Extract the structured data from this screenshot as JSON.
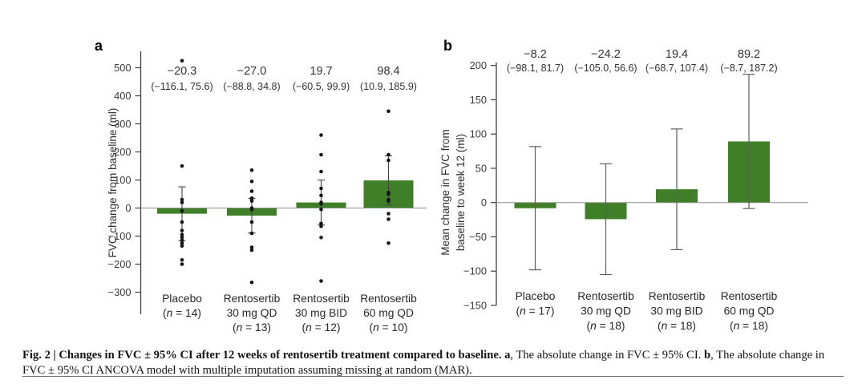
{
  "figure": {
    "caption": {
      "segments": [
        {
          "text": "Fig. 2 | Changes in FVC ± 95% CI after 12 weeks of rentosertib treatment compared to baseline. a",
          "bold": true
        },
        {
          "text": ", The absolute change in FVC ± 95% CI. ",
          "bold": false
        },
        {
          "text": "b",
          "bold": true
        },
        {
          "text": ", The absolute change in FVC ± 95% CI ANCOVA model with multiple imputation assuming missing at random (MAR).",
          "bold": false
        }
      ]
    },
    "colors": {
      "bar_green": "#3e7f27",
      "axis": "#404040",
      "zero_line": "#8d8d8d",
      "whisker_a": "#454545",
      "whisker_b": "#5f5f5f",
      "point": "#151515"
    }
  },
  "chart_data": [
    {
      "type": "bar",
      "panel": "a",
      "ylabel": "FVC change from baseline (ml)",
      "ylim": [
        -300,
        540
      ],
      "yticks": [
        500,
        400,
        300,
        200,
        100,
        0,
        -100,
        -200,
        -300
      ],
      "grid": false,
      "legend": "none",
      "categories": [
        {
          "lines": [
            "Placebo"
          ],
          "n": 14
        },
        {
          "lines": [
            "Rentosertib",
            "30 mg QD"
          ],
          "n": 13
        },
        {
          "lines": [
            "Rentosertib",
            "30 mg BID"
          ],
          "n": 12
        },
        {
          "lines": [
            "Rentosertib",
            "60 mg QD"
          ],
          "n": 10
        }
      ],
      "values": [
        -20.3,
        -27.0,
        19.7,
        98.4
      ],
      "ci_low": [
        -116.1,
        -88.8,
        -60.5,
        10.9
      ],
      "ci_high": [
        75.6,
        34.8,
        99.9,
        185.9
      ],
      "value_labels": [
        "−20.3",
        "−27.0",
        "19.7",
        "98.4"
      ],
      "ci_labels": [
        "(−116.1, 75.6)",
        "(−88.8, 34.8)",
        "(−60.5, 99.9)",
        "(10.9, 185.9)"
      ],
      "points": [
        [
          525,
          150,
          30,
          20,
          -10,
          -50,
          -80,
          -95,
          -105,
          -115,
          -125,
          -135,
          -185,
          -200
        ],
        [
          135,
          95,
          60,
          35,
          30,
          25,
          0,
          -5,
          -50,
          -90,
          -140,
          -150,
          -265
        ],
        [
          260,
          190,
          130,
          70,
          45,
          20,
          15,
          -5,
          -55,
          -65,
          -105,
          -260
        ],
        [
          345,
          190,
          170,
          55,
          50,
          30,
          25,
          -20,
          -40,
          -125
        ]
      ]
    },
    {
      "type": "bar",
      "panel": "b",
      "ylabel_lines": [
        "Mean change in FVC from",
        "baseline to week 12 (ml)"
      ],
      "ylim": [
        -150,
        200
      ],
      "yticks": [
        200,
        150,
        100,
        50,
        0,
        -50,
        -100,
        -150
      ],
      "grid": false,
      "legend": "none",
      "categories": [
        {
          "lines": [
            "Placebo"
          ],
          "n": 17
        },
        {
          "lines": [
            "Rentosertib",
            "30 mg QD"
          ],
          "n": 18
        },
        {
          "lines": [
            "Rentosertib",
            "30 mg BID"
          ],
          "n": 18
        },
        {
          "lines": [
            "Rentosertib",
            "60 mg QD"
          ],
          "n": 18
        }
      ],
      "values": [
        -8.2,
        -24.2,
        19.4,
        89.2
      ],
      "ci_low": [
        -98.1,
        -105.0,
        -68.7,
        -8.7
      ],
      "ci_high": [
        81.7,
        56.6,
        107.4,
        187.2
      ],
      "value_labels": [
        "−8.2",
        "−24.2",
        "19.4",
        "89.2"
      ],
      "ci_labels": [
        "(−98.1, 81.7)",
        "(−105.0, 56.6)",
        "(−68.7, 107.4)",
        "(−8.7, 187.2)"
      ]
    }
  ]
}
